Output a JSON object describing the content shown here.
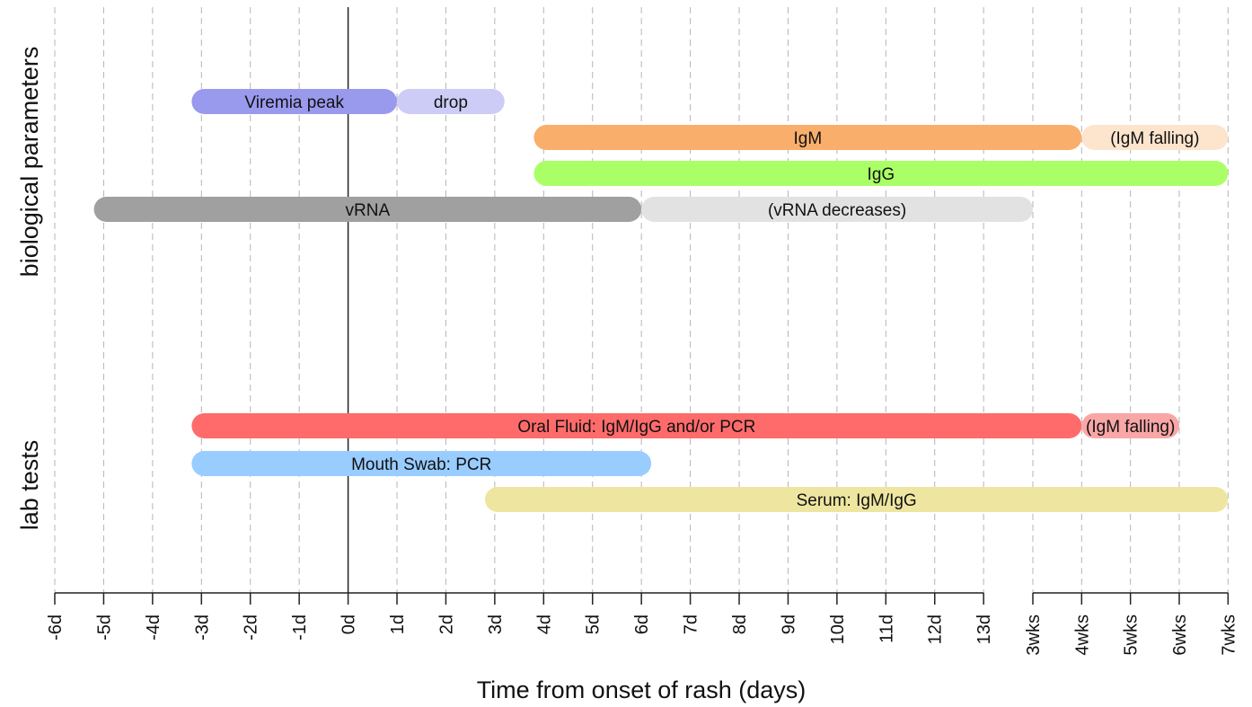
{
  "chart_data": {
    "type": "timeline",
    "xlabel": "Time from onset of rash (days)",
    "x_ticks": [
      "-6d",
      "-5d",
      "-4d",
      "-3d",
      "-2d",
      "-1d",
      "0d",
      "1d",
      "2d",
      "3d",
      "4d",
      "5d",
      "6d",
      "7d",
      "8d",
      "9d",
      "10d",
      "11d",
      "12d",
      "13d",
      "3wks",
      "4wks",
      "5wks",
      "6wks",
      "7wks"
    ],
    "x_range": [
      "-6d",
      "7wks"
    ],
    "axis_break": "between 13d and 3wks",
    "reference_line": "0d",
    "grid": "vertical dashed",
    "groups": [
      {
        "name": "biological parameters",
        "bars": [
          {
            "segments": [
              {
                "label": "Viremia peak",
                "start": "-3.2d",
                "end": "1d",
                "color": "#9999ee"
              },
              {
                "label": "drop",
                "start": "1d",
                "end": "3.2d",
                "color": "#ccccf7"
              }
            ]
          },
          {
            "segments": [
              {
                "label": "IgM",
                "start": "3.8d",
                "end": "4wks",
                "color": "#f9ae6c"
              },
              {
                "label": "(IgM falling)",
                "start": "4wks",
                "end": "7wks",
                "color": "#fde5cd"
              }
            ]
          },
          {
            "segments": [
              {
                "label": "IgG",
                "start": "3.8d",
                "end": "7wks",
                "color": "#aaff66"
              }
            ]
          },
          {
            "segments": [
              {
                "label": "vRNA",
                "start": "-5.2d",
                "end": "6d",
                "color": "#a0a0a0"
              },
              {
                "label": "(vRNA decreases)",
                "start": "6d",
                "end": "3wks",
                "color": "#e2e2e2"
              }
            ]
          }
        ]
      },
      {
        "name": "lab tests",
        "bars": [
          {
            "segments": [
              {
                "label": "Oral Fluid: IgM/IgG and/or PCR",
                "start": "-3.2d",
                "end": "4wks",
                "color": "#ff6b6b"
              },
              {
                "label": "(IgM falling)",
                "start": "4wks",
                "end": "6wks",
                "color": "#f9a6a6"
              }
            ]
          },
          {
            "segments": [
              {
                "label": "Mouth Swab: PCR",
                "start": "-3.2d",
                "end": "6.2d",
                "color": "#99ccff"
              }
            ]
          },
          {
            "segments": [
              {
                "label": "Serum: IgM/IgG",
                "start": "2.8d",
                "end": "7wks",
                "color": "#eee6a0"
              }
            ]
          }
        ]
      }
    ]
  }
}
